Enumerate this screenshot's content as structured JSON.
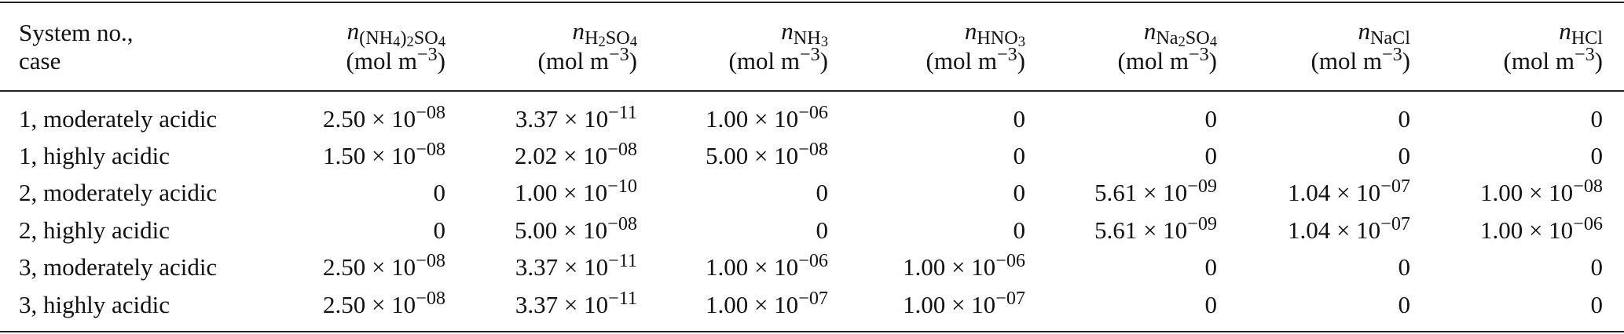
{
  "table": {
    "header": [
      {
        "lines": [
          "System no.,",
          "case"
        ]
      },
      {
        "parts": [
          {
            "text": "n",
            "style": "italic"
          },
          {
            "text": "(NH",
            "style": "sub"
          },
          {
            "text": "4",
            "style": "subsub"
          },
          {
            "text": ")",
            "style": "sub"
          },
          {
            "text": "2",
            "style": "subsub"
          },
          {
            "text": "SO",
            "style": "sub"
          },
          {
            "text": "4",
            "style": "subsub"
          }
        ],
        "unit": [
          {
            "text": "(mol m",
            "style": "plain"
          },
          {
            "text": "−3",
            "style": "sup"
          },
          {
            "text": ")",
            "style": "plain"
          }
        ]
      },
      {
        "parts": [
          {
            "text": "n",
            "style": "italic"
          },
          {
            "text": "H",
            "style": "sub"
          },
          {
            "text": "2",
            "style": "subsub"
          },
          {
            "text": "SO",
            "style": "sub"
          },
          {
            "text": "4",
            "style": "subsub"
          }
        ],
        "unit": [
          {
            "text": "(mol m",
            "style": "plain"
          },
          {
            "text": "−3",
            "style": "sup"
          },
          {
            "text": ")",
            "style": "plain"
          }
        ]
      },
      {
        "parts": [
          {
            "text": "n",
            "style": "italic"
          },
          {
            "text": "NH",
            "style": "sub"
          },
          {
            "text": "3",
            "style": "subsub"
          }
        ],
        "unit": [
          {
            "text": "(mol m",
            "style": "plain"
          },
          {
            "text": "−3",
            "style": "sup"
          },
          {
            "text": ")",
            "style": "plain"
          }
        ]
      },
      {
        "parts": [
          {
            "text": "n",
            "style": "italic"
          },
          {
            "text": "HNO",
            "style": "sub"
          },
          {
            "text": "3",
            "style": "subsub"
          }
        ],
        "unit": [
          {
            "text": "(mol m",
            "style": "plain"
          },
          {
            "text": "−3",
            "style": "sup"
          },
          {
            "text": ")",
            "style": "plain"
          }
        ]
      },
      {
        "parts": [
          {
            "text": "n",
            "style": "italic"
          },
          {
            "text": "Na",
            "style": "sub"
          },
          {
            "text": "2",
            "style": "subsub"
          },
          {
            "text": "SO",
            "style": "sub"
          },
          {
            "text": "4",
            "style": "subsub"
          }
        ],
        "unit": [
          {
            "text": "(mol m",
            "style": "plain"
          },
          {
            "text": "−3",
            "style": "sup"
          },
          {
            "text": ")",
            "style": "plain"
          }
        ]
      },
      {
        "parts": [
          {
            "text": "n",
            "style": "italic"
          },
          {
            "text": "NaCl",
            "style": "sub"
          }
        ],
        "unit": [
          {
            "text": "(mol m",
            "style": "plain"
          },
          {
            "text": "−3",
            "style": "sup"
          },
          {
            "text": ")",
            "style": "plain"
          }
        ]
      },
      {
        "parts": [
          {
            "text": "n",
            "style": "italic"
          },
          {
            "text": "HCl",
            "style": "sub"
          }
        ],
        "unit": [
          {
            "text": "(mol m",
            "style": "plain"
          },
          {
            "text": "−3",
            "style": "sup"
          },
          {
            "text": ")",
            "style": "plain"
          }
        ]
      }
    ],
    "rows": [
      [
        "1, moderately acidic",
        {
          "base": "2.50 × 10",
          "exponent": "−08"
        },
        {
          "base": "3.37 × 10",
          "exponent": "−11"
        },
        {
          "base": "1.00 × 10",
          "exponent": "−06"
        },
        "0",
        "0",
        "0",
        "0"
      ],
      [
        "1, highly acidic",
        {
          "base": "1.50 × 10",
          "exponent": "−08"
        },
        {
          "base": "2.02 × 10",
          "exponent": "−08"
        },
        {
          "base": "5.00 × 10",
          "exponent": "−08"
        },
        "0",
        "0",
        "0",
        "0"
      ],
      [
        "2, moderately acidic",
        "0",
        {
          "base": "1.00 × 10",
          "exponent": "−10"
        },
        "0",
        "0",
        {
          "base": "5.61 × 10",
          "exponent": "−09"
        },
        {
          "base": "1.04 × 10",
          "exponent": "−07"
        },
        {
          "base": "1.00 × 10",
          "exponent": "−08"
        }
      ],
      [
        "2, highly acidic",
        "0",
        {
          "base": "5.00 × 10",
          "exponent": "−08"
        },
        "0",
        "0",
        {
          "base": "5.61 × 10",
          "exponent": "−09"
        },
        {
          "base": "1.04 × 10",
          "exponent": "−07"
        },
        {
          "base": "1.00 × 10",
          "exponent": "−06"
        }
      ],
      [
        "3, moderately acidic",
        {
          "base": "2.50 × 10",
          "exponent": "−08"
        },
        {
          "base": "3.37 × 10",
          "exponent": "−11"
        },
        {
          "base": "1.00 × 10",
          "exponent": "−06"
        },
        {
          "base": "1.00 × 10",
          "exponent": "−06"
        },
        "0",
        "0",
        "0"
      ],
      [
        "3, highly acidic",
        {
          "base": "2.50 × 10",
          "exponent": "−08"
        },
        {
          "base": "3.37 × 10",
          "exponent": "−11"
        },
        {
          "base": "1.00 × 10",
          "exponent": "−07"
        },
        {
          "base": "1.00 × 10",
          "exponent": "−07"
        },
        "0",
        "0",
        "0"
      ]
    ]
  }
}
